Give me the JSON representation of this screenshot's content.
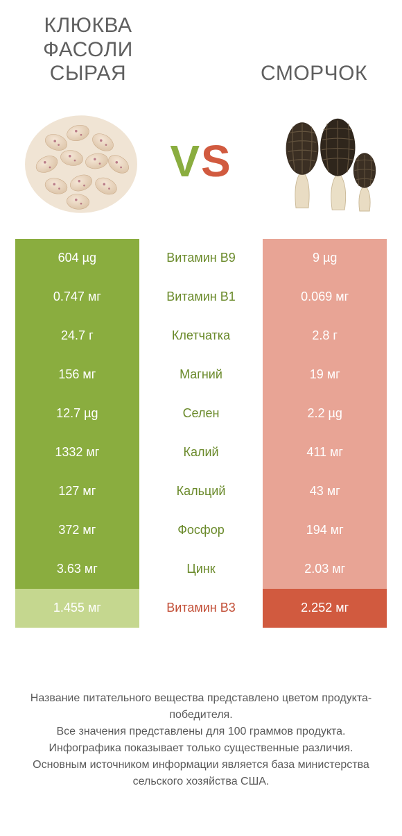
{
  "titles": {
    "left": "КЛЮКВА\nФАСОЛИ\nСЫРАЯ",
    "right": "СМОРЧОК"
  },
  "vs": {
    "v": "V",
    "s": "S"
  },
  "colors": {
    "left_win": "#8aad3f",
    "left_lose": "#c5d78f",
    "right_win": "#d15a3f",
    "right_lose": "#e8a495",
    "nut_green": "#6a8a2a",
    "nut_orange": "#c24e36"
  },
  "rows": [
    {
      "left": "604 µg",
      "nutrient": "Витамин B9",
      "right": "9 µg",
      "winner": "left"
    },
    {
      "left": "0.747 мг",
      "nutrient": "Витамин B1",
      "right": "0.069 мг",
      "winner": "left"
    },
    {
      "left": "24.7 г",
      "nutrient": "Клетчатка",
      "right": "2.8 г",
      "winner": "left"
    },
    {
      "left": "156 мг",
      "nutrient": "Магний",
      "right": "19 мг",
      "winner": "left"
    },
    {
      "left": "12.7 µg",
      "nutrient": "Селен",
      "right": "2.2 µg",
      "winner": "left"
    },
    {
      "left": "1332 мг",
      "nutrient": "Калий",
      "right": "411 мг",
      "winner": "left"
    },
    {
      "left": "127 мг",
      "nutrient": "Кальций",
      "right": "43 мг",
      "winner": "left"
    },
    {
      "left": "372 мг",
      "nutrient": "Фосфор",
      "right": "194 мг",
      "winner": "left"
    },
    {
      "left": "3.63 мг",
      "nutrient": "Цинк",
      "right": "2.03 мг",
      "winner": "left"
    },
    {
      "left": "1.455 мг",
      "nutrient": "Витамин B3",
      "right": "2.252 мг",
      "winner": "right"
    }
  ],
  "footer": [
    "Название питательного вещества представлено цветом продукта-победителя.",
    "Все значения представлены для 100 граммов продукта.",
    "Инфографика показывает только существенные различия.",
    "Основным источником информации является база министерства сельского хозяйства США."
  ]
}
